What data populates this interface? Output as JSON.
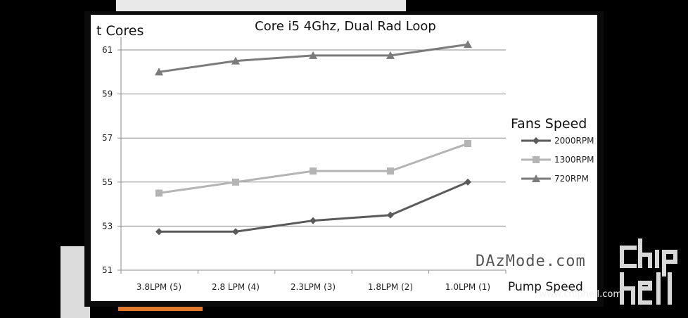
{
  "chart_data": {
    "type": "line",
    "title": "Core i5 4Ghz, Dual Rad Loop",
    "ylabel": "t Cores",
    "xlabel": "Pump Speed",
    "legend_title": "Fans Speed",
    "legend_position": "right",
    "grid": true,
    "ylim": [
      51,
      61.5
    ],
    "yticks": [
      51,
      53,
      55,
      57,
      59,
      61
    ],
    "categories": [
      "3.8LPM (5)",
      "2.8 LPM (4)",
      "2.3LPM (3)",
      "1.8LPM (2)",
      "1.0LPM (1)"
    ],
    "series": [
      {
        "name": "2000RPM",
        "marker": "diamond",
        "color": "#5a5a5a",
        "values": [
          52.75,
          52.75,
          53.25,
          53.5,
          55.0
        ]
      },
      {
        "name": "1300RPM",
        "marker": "square",
        "color": "#b4b4b4",
        "values": [
          54.5,
          55.0,
          55.5,
          55.5,
          56.75
        ]
      },
      {
        "name": "720RPM",
        "marker": "triangle",
        "color": "#7b7b7b",
        "values": [
          60.0,
          60.5,
          60.75,
          60.75,
          61.25
        ]
      }
    ]
  },
  "watermark_slide": "DAzMode.com",
  "watermark_site": "www.chiphell.com",
  "watermark_logo": "chip hell"
}
